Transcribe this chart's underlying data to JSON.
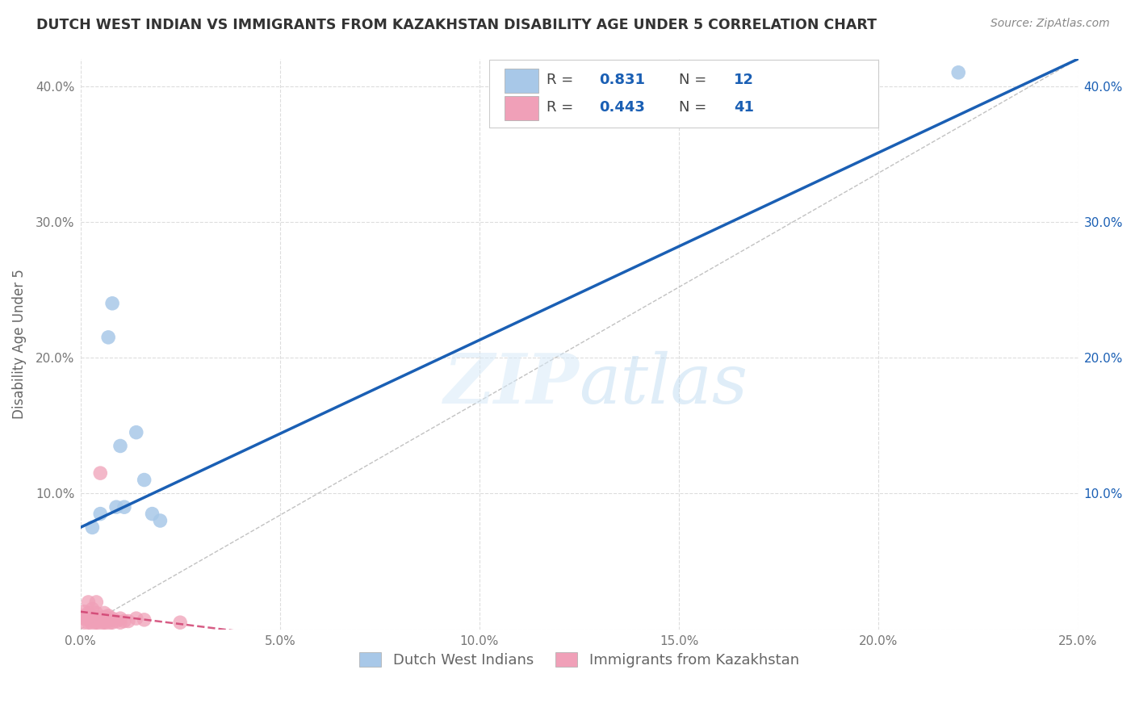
{
  "title": "DUTCH WEST INDIAN VS IMMIGRANTS FROM KAZAKHSTAN DISABILITY AGE UNDER 5 CORRELATION CHART",
  "source": "Source: ZipAtlas.com",
  "ylabel": "Disability Age Under 5",
  "xlim": [
    0.0,
    0.25
  ],
  "ylim": [
    0.0,
    0.42
  ],
  "xticks": [
    0.0,
    0.05,
    0.1,
    0.15,
    0.2,
    0.25
  ],
  "yticks": [
    0.0,
    0.1,
    0.2,
    0.3,
    0.4
  ],
  "xticklabels": [
    "0.0%",
    "5.0%",
    "10.0%",
    "15.0%",
    "20.0%",
    "25.0%"
  ],
  "left_yticklabels": [
    "",
    "10.0%",
    "20.0%",
    "30.0%",
    "40.0%"
  ],
  "right_yticklabels": [
    "",
    "10.0%",
    "20.0%",
    "30.0%",
    "40.0%"
  ],
  "blue_R": 0.831,
  "blue_N": 12,
  "pink_R": 0.443,
  "pink_N": 41,
  "blue_color": "#a8c8e8",
  "pink_color": "#f0a0b8",
  "blue_line_color": "#1a5fb4",
  "pink_line_color": "#d04070",
  "ref_line_color": "#bbbbbb",
  "legend_blue_label": "Dutch West Indians",
  "legend_pink_label": "Immigrants from Kazakhstan",
  "watermark_zip": "ZIP",
  "watermark_atlas": "atlas",
  "blue_scatter_x": [
    0.003,
    0.005,
    0.007,
    0.008,
    0.009,
    0.01,
    0.011,
    0.014,
    0.016,
    0.018,
    0.02,
    0.22
  ],
  "blue_scatter_y": [
    0.075,
    0.085,
    0.215,
    0.24,
    0.09,
    0.135,
    0.09,
    0.145,
    0.11,
    0.085,
    0.08,
    0.41
  ],
  "pink_scatter_x": [
    0.001,
    0.001,
    0.001,
    0.001,
    0.002,
    0.002,
    0.002,
    0.002,
    0.002,
    0.003,
    0.003,
    0.003,
    0.003,
    0.003,
    0.004,
    0.004,
    0.004,
    0.004,
    0.004,
    0.005,
    0.005,
    0.005,
    0.005,
    0.006,
    0.006,
    0.006,
    0.006,
    0.007,
    0.007,
    0.007,
    0.007,
    0.008,
    0.008,
    0.009,
    0.01,
    0.01,
    0.011,
    0.012,
    0.014,
    0.016,
    0.025
  ],
  "pink_scatter_y": [
    0.005,
    0.008,
    0.01,
    0.013,
    0.005,
    0.007,
    0.01,
    0.012,
    0.02,
    0.004,
    0.006,
    0.008,
    0.01,
    0.015,
    0.005,
    0.007,
    0.009,
    0.012,
    0.02,
    0.004,
    0.006,
    0.115,
    0.008,
    0.005,
    0.007,
    0.009,
    0.012,
    0.004,
    0.006,
    0.008,
    0.01,
    0.005,
    0.008,
    0.006,
    0.005,
    0.008,
    0.006,
    0.006,
    0.008,
    0.007,
    0.005
  ],
  "background_color": "#ffffff",
  "grid_color": "#dddddd"
}
